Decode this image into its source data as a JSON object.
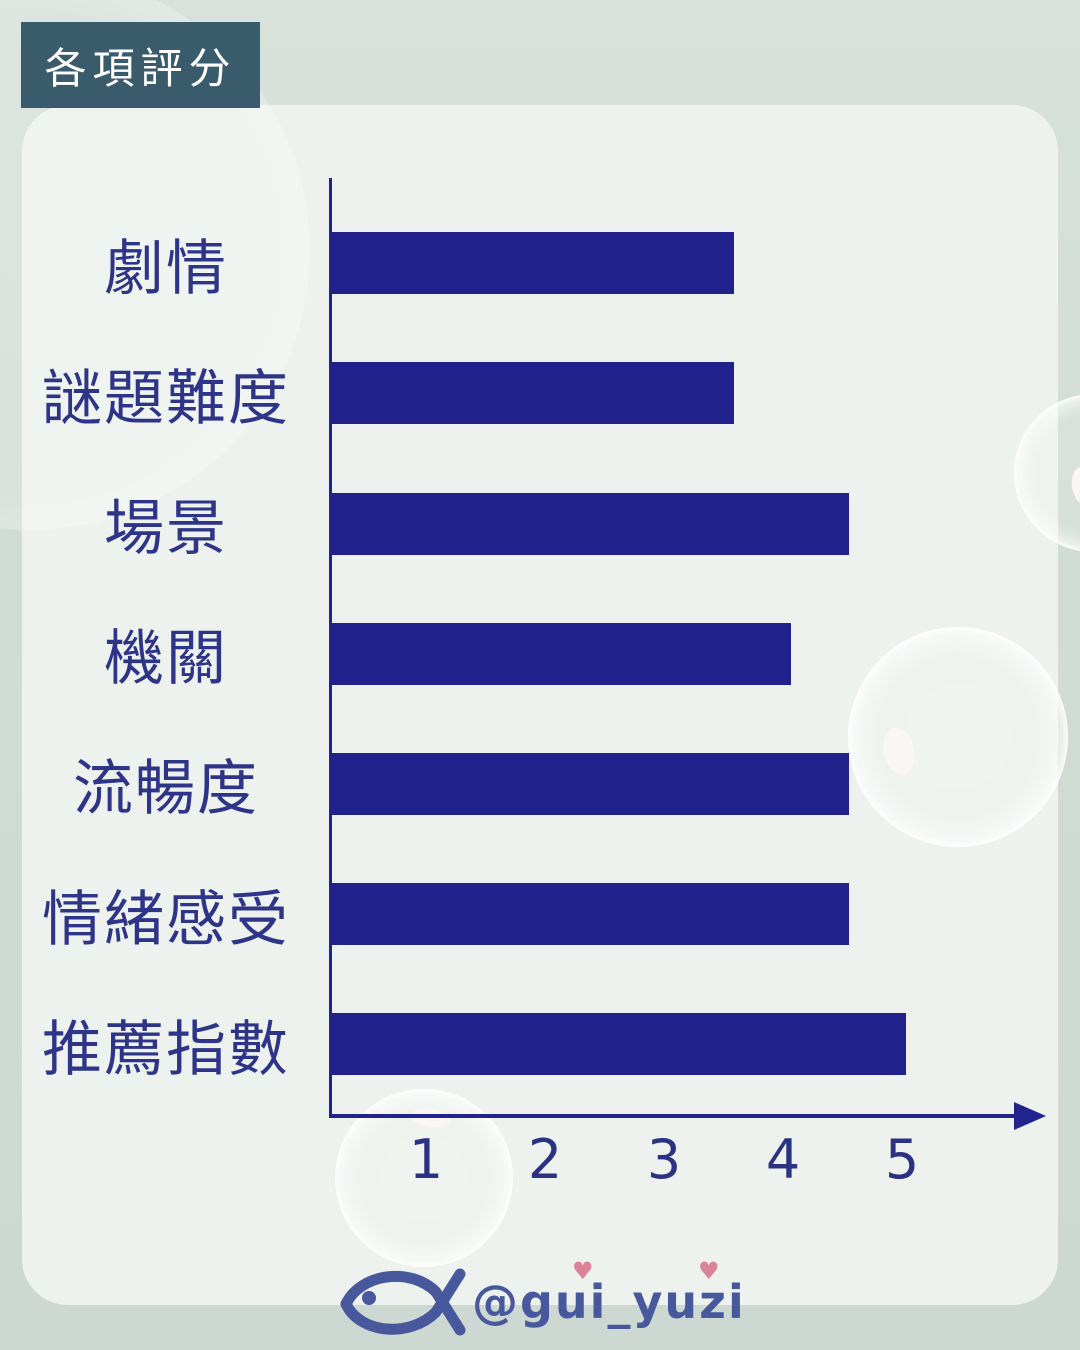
{
  "page": {
    "title_badge": "各項評分",
    "signature_handle": "@gui_yuzi",
    "colors": {
      "background_top": "#d8e1db",
      "background_bottom": "#ccd8d1",
      "panel": "#edf2ee",
      "badge_bg": "#3a5b6c",
      "badge_text": "#ffffff",
      "bar": "#21218c",
      "axis": "#23238d",
      "category_label": "#2e3487",
      "tick_label": "#2b3282",
      "signature_blue": "#47589d",
      "heart_pink": "#db8498"
    },
    "icons": {
      "fish": "fish-doodle",
      "heart": "♥"
    }
  },
  "chart_data": {
    "type": "bar",
    "orientation": "horizontal",
    "title": "各項評分",
    "categories": [
      "劇情",
      "謎題難度",
      "場景",
      "機關",
      "流暢度",
      "情緒感受",
      "推薦指數"
    ],
    "values": [
      3.5,
      3.5,
      4.5,
      4,
      4.5,
      4.5,
      5
    ],
    "x_ticks": [
      "1",
      "2",
      "3",
      "4",
      "5"
    ],
    "xlim": [
      0,
      6
    ],
    "xlabel": "",
    "ylabel": "",
    "grid": false,
    "legend": "none",
    "bar_color": "#21218c"
  }
}
